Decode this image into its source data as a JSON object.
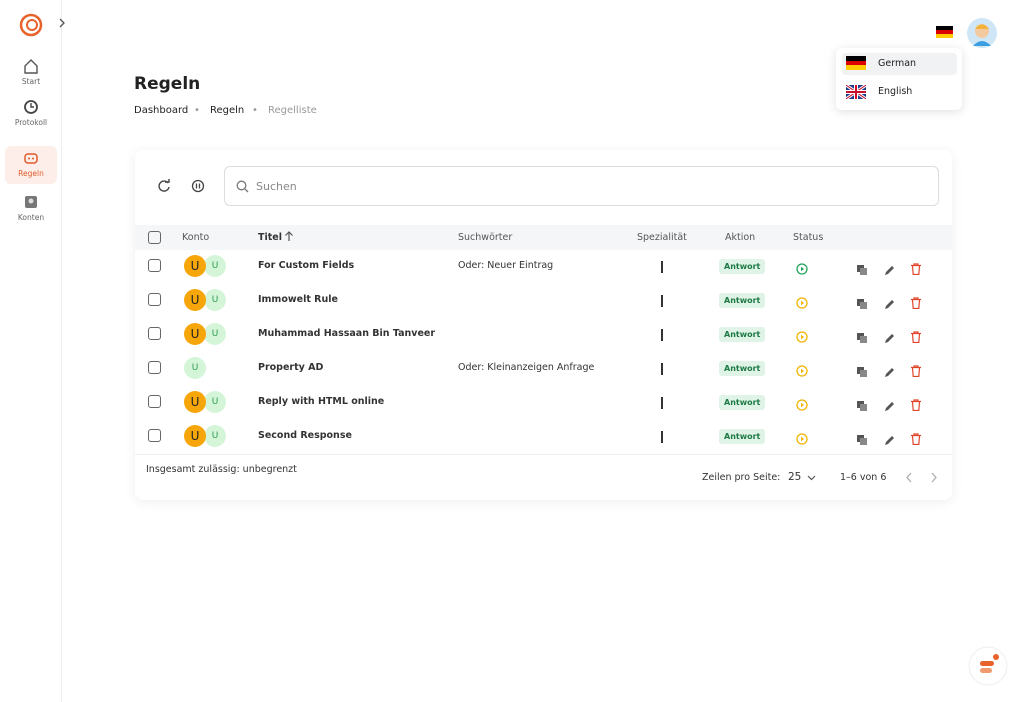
{
  "sidebar": {
    "items": [
      "Start",
      "Protokoll",
      "Regeln",
      "Konten"
    ]
  },
  "header": {
    "title": "Regeln",
    "breadcrumb": [
      "Dashboard",
      "Regeln",
      "Regelliste"
    ]
  },
  "language_menu": {
    "items": [
      "German",
      "English"
    ]
  },
  "search": {
    "placeholder": "Suchen"
  },
  "table": {
    "columns": [
      "Konto",
      "Titel",
      "Suchwörter",
      "Spezialität",
      "Aktion",
      "Status"
    ],
    "rows": [
      {
        "avatars": [
          {
            "label": "U",
            "color": "#f6a609"
          },
          {
            "label": "U",
            "color": "#d5f5d9"
          }
        ],
        "title": "For Custom Fields",
        "keywords": "Oder: Neuer Eintrag",
        "action": "Antwort",
        "status_color": "#22a55a"
      },
      {
        "avatars": [
          {
            "label": "U",
            "color": "#f6a609"
          },
          {
            "label": "U",
            "color": "#d5f5d9"
          }
        ],
        "title": "Immowelt Rule",
        "keywords": "",
        "action": "Antwort",
        "status_color": "#f0b400"
      },
      {
        "avatars": [
          {
            "label": "U",
            "color": "#f6a609"
          },
          {
            "label": "U",
            "color": "#d5f5d9"
          }
        ],
        "title": "Muhammad Hassaan Bin Tanveer",
        "keywords": "",
        "action": "Antwort",
        "status_color": "#f0b400"
      },
      {
        "avatars": [
          {
            "label": "U",
            "color": "#d5f5d9"
          }
        ],
        "title": "Property AD",
        "keywords": "Oder: Kleinanzeigen Anfrage",
        "action": "Antwort",
        "status_color": "#f0b400"
      },
      {
        "avatars": [
          {
            "label": "U",
            "color": "#f6a609"
          },
          {
            "label": "U",
            "color": "#d5f5d9"
          }
        ],
        "title": "Reply with HTML online",
        "keywords": "",
        "action": "Antwort",
        "status_color": "#f0b400"
      },
      {
        "avatars": [
          {
            "label": "U",
            "color": "#f6a609"
          },
          {
            "label": "U",
            "color": "#d5f5d9"
          }
        ],
        "title": "Second Response",
        "keywords": "",
        "action": "Antwort",
        "status_color": "#f0b400"
      }
    ]
  },
  "footer": {
    "total": "Insgesamt zulässig: unbegrenzt",
    "rows_per_page_label": "Zeilen pro Seite:",
    "rows_per_page": "25",
    "range": "1–6 von 6"
  }
}
